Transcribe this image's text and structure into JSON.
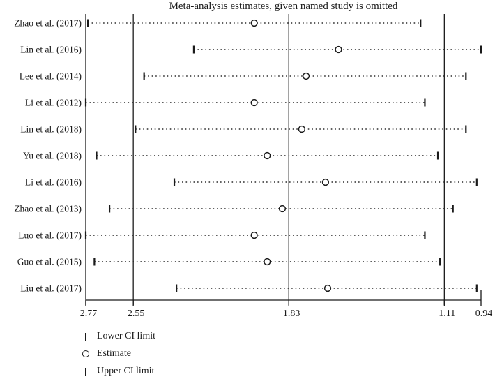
{
  "title": "Meta-analysis estimates, given named study is omitted",
  "colors": {
    "line": "#1a1a1a",
    "dotted_line": "#2a2a2a",
    "text": "#1a1a1a",
    "background": "#ffffff",
    "circle_fill": "#ffffff"
  },
  "legend": [
    {
      "marker": "lower-ci",
      "label": "Lower CI limit"
    },
    {
      "marker": "estimate",
      "label": "Estimate"
    },
    {
      "marker": "upper-ci",
      "label": "Upper CI limit"
    }
  ],
  "chart_data": {
    "type": "scatter",
    "subtype": "leave-one-out-sensitivity-forest-plot",
    "title": "Meta-analysis estimates, given named study is omitted",
    "xlim": [
      -2.77,
      -0.94
    ],
    "x_ticks": [
      -2.77,
      -2.55,
      -1.83,
      -1.11,
      -0.94
    ],
    "x_tick_labels": [
      "−2.77",
      "−2.55",
      "−1.83",
      "−1.11",
      "−0.94"
    ],
    "vertical_lines": [
      -2.77,
      -2.55,
      -1.83,
      -1.11
    ],
    "overall": {
      "lower_ci": -2.55,
      "estimate": -1.83,
      "upper_ci": -1.11
    },
    "grid": false,
    "legend_position": "bottom-left",
    "studies": [
      {
        "label": "Zhao et al. (2017)",
        "lower": -2.76,
        "estimate": -1.99,
        "upper": -1.22
      },
      {
        "label": "Lin et al. (2016)",
        "lower": -2.27,
        "estimate": -1.6,
        "upper": -0.94
      },
      {
        "label": "Lee et al. (2014)",
        "lower": -2.5,
        "estimate": -1.75,
        "upper": -1.01
      },
      {
        "label": "Li et al. (2012)",
        "lower": -2.77,
        "estimate": -1.99,
        "upper": -1.2
      },
      {
        "label": "Lin et al. (2018)",
        "lower": -2.54,
        "estimate": -1.77,
        "upper": -1.01
      },
      {
        "label": "Yu et al. (2018)",
        "lower": -2.72,
        "estimate": -1.93,
        "upper": -1.14
      },
      {
        "label": "Li et al. (2016)",
        "lower": -2.36,
        "estimate": -1.66,
        "upper": -0.96
      },
      {
        "label": "Zhao et al. (2013)",
        "lower": -2.66,
        "estimate": -1.86,
        "upper": -1.07
      },
      {
        "label": "Luo et al. (2017)",
        "lower": -2.77,
        "estimate": -1.99,
        "upper": -1.2
      },
      {
        "label": "Guo et al. (2015)",
        "lower": -2.73,
        "estimate": -1.93,
        "upper": -1.13
      },
      {
        "label": "Liu et al. (2017)",
        "lower": -2.35,
        "estimate": -1.65,
        "upper": -0.96
      }
    ]
  }
}
